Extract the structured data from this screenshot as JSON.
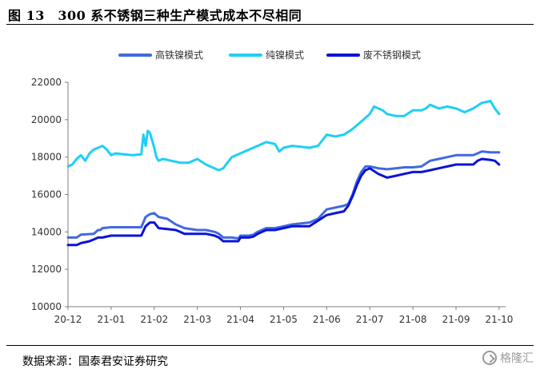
{
  "figure": {
    "title": "图 13　300 系不锈钢三种生产模式成本不尽相同",
    "source": "数据来源：国泰君安证券研究",
    "watermark": "格隆汇"
  },
  "colors": {
    "series_1": "#4169E1",
    "series_2": "#1ECFF5",
    "series_3": "#0A14D6",
    "axis": "#7f7f7f"
  },
  "chart_data": {
    "type": "line",
    "title": "",
    "xlabel": "",
    "ylabel": "",
    "ylim": [
      10000,
      22000
    ],
    "yticks": [
      10000,
      12000,
      14000,
      16000,
      18000,
      20000,
      22000
    ],
    "xlim": [
      0,
      10.15
    ],
    "xticks": [
      "20-12",
      "21-01",
      "21-02",
      "21-03",
      "21-04",
      "21-05",
      "21-06",
      "21-07",
      "21-08",
      "21-09",
      "21-10"
    ],
    "grid": false,
    "legend_position": "top",
    "series": [
      {
        "name": "高铁镍模式",
        "x": [
          0,
          0.2,
          0.3,
          0.6,
          0.65,
          0.7,
          0.75,
          0.8,
          1.0,
          1.3,
          1.7,
          1.8,
          1.9,
          2.0,
          2.1,
          2.3,
          2.5,
          2.6,
          2.7,
          3.0,
          3.2,
          3.4,
          3.5,
          3.6,
          3.8,
          3.95,
          4.0,
          4.2,
          4.3,
          4.4,
          4.6,
          4.8,
          5.0,
          5.2,
          5.4,
          5.6,
          5.8,
          6.0,
          6.2,
          6.4,
          6.5,
          6.6,
          6.7,
          6.8,
          6.9,
          7.0,
          7.2,
          7.4,
          7.6,
          7.8,
          8.0,
          8.2,
          8.4,
          8.6,
          8.8,
          9.0,
          9.2,
          9.4,
          9.5,
          9.6,
          9.8,
          10.0
        ],
        "y": [
          13700,
          13700,
          13850,
          13900,
          14000,
          14100,
          14100,
          14200,
          14250,
          14250,
          14250,
          14800,
          14950,
          15000,
          14800,
          14700,
          14400,
          14300,
          14200,
          14100,
          14100,
          14000,
          13900,
          13700,
          13700,
          13650,
          13800,
          13800,
          13850,
          14000,
          14200,
          14200,
          14300,
          14400,
          14450,
          14500,
          14700,
          15200,
          15300,
          15400,
          15500,
          16000,
          16700,
          17200,
          17500,
          17500,
          17400,
          17350,
          17400,
          17450,
          17450,
          17500,
          17800,
          17900,
          18000,
          18100,
          18100,
          18100,
          18200,
          18300,
          18250,
          18250
        ]
      },
      {
        "name": "纯镍模式",
        "x": [
          0,
          0.1,
          0.2,
          0.3,
          0.4,
          0.5,
          0.6,
          0.7,
          0.8,
          0.9,
          1.0,
          1.1,
          1.3,
          1.5,
          1.7,
          1.75,
          1.8,
          1.85,
          1.9,
          2.0,
          2.05,
          2.1,
          2.2,
          2.4,
          2.6,
          2.8,
          3.0,
          3.2,
          3.3,
          3.4,
          3.5,
          3.6,
          3.8,
          4.0,
          4.2,
          4.4,
          4.6,
          4.8,
          4.9,
          5.0,
          5.2,
          5.4,
          5.6,
          5.8,
          6.0,
          6.2,
          6.4,
          6.6,
          6.8,
          6.9,
          7.0,
          7.1,
          7.2,
          7.3,
          7.4,
          7.6,
          7.8,
          8.0,
          8.2,
          8.3,
          8.4,
          8.6,
          8.8,
          9.0,
          9.2,
          9.4,
          9.6,
          9.8,
          9.9,
          10.0
        ],
        "y": [
          17500,
          17600,
          17900,
          18100,
          17800,
          18200,
          18400,
          18500,
          18600,
          18400,
          18100,
          18200,
          18150,
          18100,
          18150,
          19200,
          18600,
          19400,
          19300,
          18500,
          18000,
          17800,
          17900,
          17800,
          17700,
          17700,
          17900,
          17600,
          17500,
          17400,
          17300,
          17400,
          18000,
          18200,
          18400,
          18600,
          18800,
          18700,
          18300,
          18500,
          18600,
          18550,
          18500,
          18600,
          19200,
          19100,
          19200,
          19500,
          19900,
          20100,
          20300,
          20700,
          20600,
          20500,
          20300,
          20200,
          20200,
          20500,
          20500,
          20600,
          20800,
          20600,
          20700,
          20600,
          20400,
          20600,
          20900,
          21000,
          20600,
          20300
        ]
      },
      {
        "name": "废不锈钢模式",
        "x": [
          0,
          0.2,
          0.3,
          0.5,
          0.6,
          0.7,
          0.8,
          1.0,
          1.3,
          1.7,
          1.8,
          1.9,
          2.0,
          2.1,
          2.3,
          2.5,
          2.6,
          2.7,
          3.0,
          3.2,
          3.4,
          3.5,
          3.6,
          3.8,
          3.95,
          4.0,
          4.2,
          4.3,
          4.4,
          4.6,
          4.8,
          5.0,
          5.2,
          5.4,
          5.6,
          5.8,
          6.0,
          6.2,
          6.4,
          6.5,
          6.6,
          6.7,
          6.8,
          6.9,
          7.0,
          7.2,
          7.4,
          7.6,
          7.8,
          8.0,
          8.2,
          8.4,
          8.6,
          8.8,
          9.0,
          9.2,
          9.4,
          9.5,
          9.6,
          9.8,
          9.9,
          10.0
        ],
        "y": [
          13300,
          13300,
          13400,
          13500,
          13600,
          13700,
          13700,
          13800,
          13800,
          13800,
          14300,
          14500,
          14500,
          14200,
          14150,
          14100,
          14000,
          13900,
          13900,
          13900,
          13800,
          13700,
          13500,
          13500,
          13500,
          13700,
          13700,
          13750,
          13900,
          14100,
          14100,
          14200,
          14300,
          14300,
          14300,
          14600,
          14900,
          15000,
          15100,
          15400,
          15900,
          16500,
          17000,
          17300,
          17400,
          17100,
          16900,
          17000,
          17100,
          17200,
          17200,
          17300,
          17400,
          17500,
          17600,
          17600,
          17600,
          17800,
          17900,
          17850,
          17800,
          17600
        ]
      }
    ]
  }
}
